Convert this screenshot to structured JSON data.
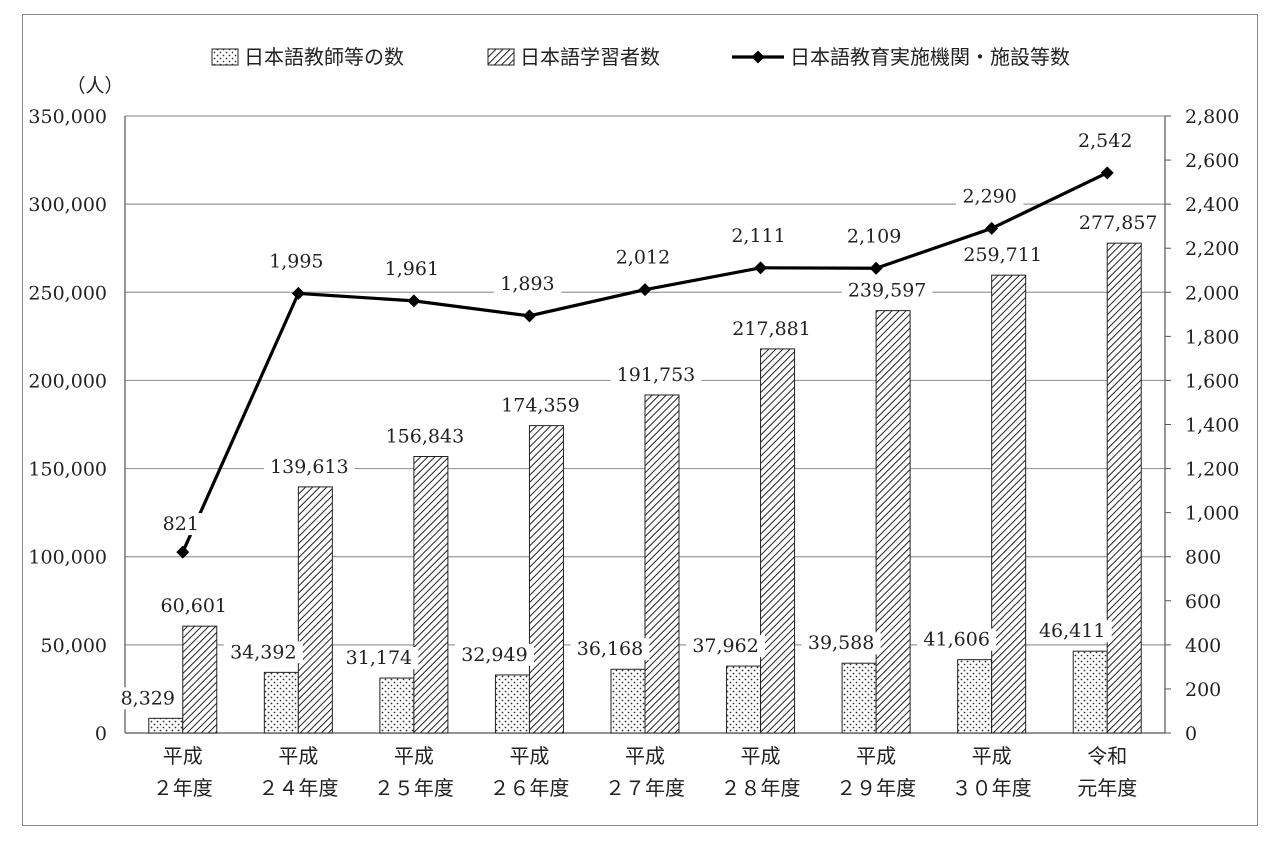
{
  "chart_data": {
    "type": "bar",
    "ylabel_left": "（人）",
    "categories": [
      [
        "平成",
        "２年度"
      ],
      [
        "平成",
        "２４年度"
      ],
      [
        "平成",
        "２５年度"
      ],
      [
        "平成",
        "２６年度"
      ],
      [
        "平成",
        "２７年度"
      ],
      [
        "平成",
        "２８年度"
      ],
      [
        "平成",
        "２９年度"
      ],
      [
        "平成",
        "３０年度"
      ],
      [
        "令和",
        "元年度"
      ]
    ],
    "ylim_left": [
      0,
      350000
    ],
    "ylim_right": [
      0,
      2800
    ],
    "yticks_left": [
      0,
      50000,
      100000,
      150000,
      200000,
      250000,
      300000,
      350000
    ],
    "yticks_left_labels": [
      "0",
      "50,000",
      "100,000",
      "150,000",
      "200,000",
      "250,000",
      "300,000",
      "350,000"
    ],
    "yticks_right": [
      0,
      200,
      400,
      600,
      800,
      1000,
      1200,
      1400,
      1600,
      1800,
      2000,
      2200,
      2400,
      2600,
      2800
    ],
    "yticks_right_labels": [
      "0",
      "200",
      "400",
      "600",
      "800",
      "1,000",
      "1,200",
      "1,400",
      "1,600",
      "1,800",
      "2,000",
      "2,200",
      "2,400",
      "2,600",
      "2,800"
    ],
    "grid": true,
    "legend_position": "top",
    "series": [
      {
        "name": "日本語教師等の数",
        "kind": "bar",
        "pattern": "dots",
        "axis": "left",
        "values": [
          8329,
          34392,
          31174,
          32949,
          36168,
          37962,
          39588,
          41606,
          46411
        ],
        "labels": [
          "8,329",
          "34,392",
          "31,174",
          "32,949",
          "36,168",
          "37,962",
          "39,588",
          "41,606",
          "46,411"
        ]
      },
      {
        "name": "日本語学習者数",
        "kind": "bar",
        "pattern": "hatch",
        "axis": "left",
        "values": [
          60601,
          139613,
          156843,
          174359,
          191753,
          217881,
          239597,
          259711,
          277857
        ],
        "labels": [
          "60,601",
          "139,613",
          "156,843",
          "174,359",
          "191,753",
          "217,881",
          "239,597",
          "259,711",
          "277,857"
        ]
      },
      {
        "name": "日本語教育実施機関・施設等数",
        "kind": "line",
        "marker": "diamond",
        "axis": "right",
        "values": [
          821,
          1995,
          1961,
          1893,
          2012,
          2111,
          2109,
          2290,
          2542
        ],
        "labels": [
          "821",
          "1,995",
          "1,961",
          "1,893",
          "2,012",
          "2,111",
          "2,109",
          "2,290",
          "2,542"
        ]
      }
    ]
  }
}
